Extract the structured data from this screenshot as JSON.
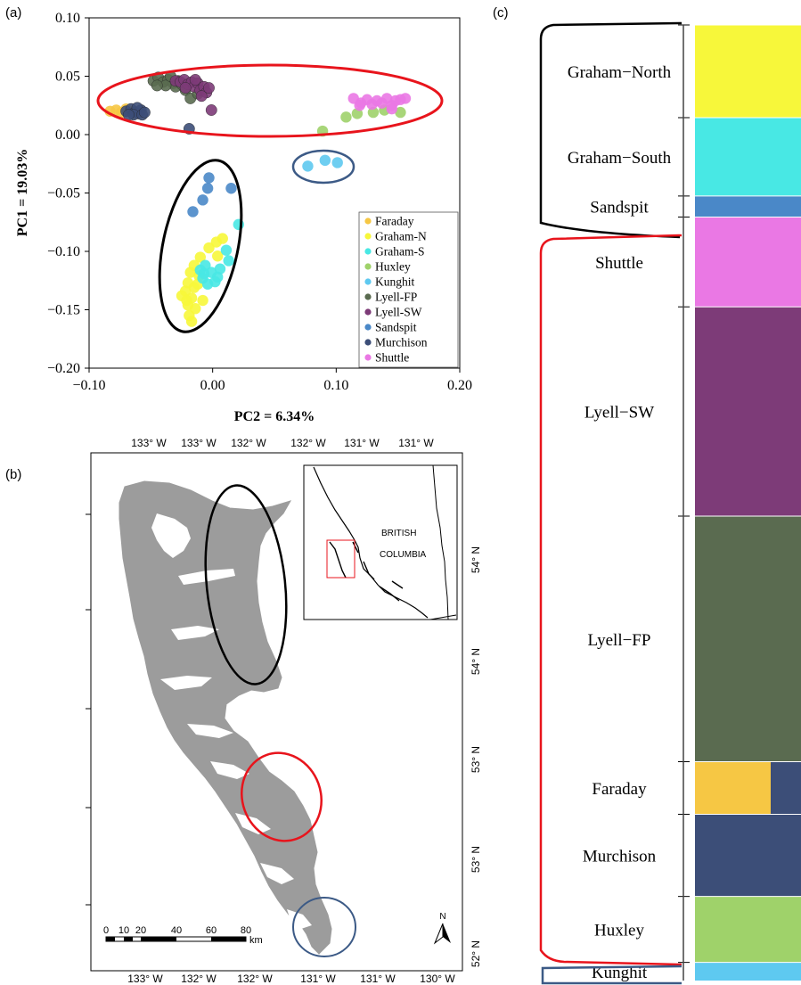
{
  "panels": {
    "a": "(a)",
    "b": "(b)",
    "c": "(c)"
  },
  "colors": {
    "Faraday": "#f6c744",
    "Graham-N": "#f7f73a",
    "Graham-S": "#48e8e4",
    "Huxley": "#9fd26a",
    "Kunghit": "#5ec9f0",
    "Lyell-FP": "#5a6b50",
    "Lyell-SW": "#7d3b78",
    "Sandspit": "#4a88c8",
    "Murchison": "#3c4e78",
    "Shuttle": "#ea78e4",
    "red_ellipse": "#e8141c",
    "blue_ellipse": "#3c5a86",
    "black_ellipse": "#000000",
    "landmass": "#9c9c9c"
  },
  "chart_data": [
    {
      "type": "scatter",
      "panel": "a",
      "xlabel": "PC2 = 6.34%",
      "ylabel": "PC1 = 19.03%",
      "xlim": [
        -0.1,
        0.2
      ],
      "ylim": [
        -0.2,
        0.1
      ],
      "xticks": [
        "−0.10",
        "0.00",
        "0.10",
        "0.20"
      ],
      "yticks": [
        "0.10",
        "0.05",
        "0.00",
        "−0.05",
        "−0.10",
        "−0.15",
        "−0.20"
      ],
      "legend_position": "bottom-right",
      "legend": [
        "Faraday",
        "Graham-N",
        "Graham-S",
        "Huxley",
        "Kunghit",
        "Lyell-FP",
        "Lyell-SW",
        "Sandspit",
        "Murchison",
        "Shuttle"
      ],
      "series": [
        {
          "name": "Faraday",
          "points": [
            [
              -0.083,
              0.02
            ],
            [
              -0.078,
              0.021
            ],
            [
              -0.074,
              0.019
            ],
            [
              -0.07,
              0.022
            ],
            [
              -0.066,
              0.02
            ],
            [
              -0.062,
              0.018
            ]
          ]
        },
        {
          "name": "Murchison",
          "points": [
            [
              -0.07,
              0.02
            ],
            [
              -0.066,
              0.022
            ],
            [
              -0.063,
              0.019
            ],
            [
              -0.06,
              0.018
            ],
            [
              -0.058,
              0.021
            ],
            [
              -0.061,
              0.023
            ],
            [
              -0.064,
              0.017
            ],
            [
              -0.057,
              0.017
            ],
            [
              -0.055,
              0.019
            ],
            [
              -0.068,
              0.017
            ],
            [
              -0.019,
              0.005
            ]
          ]
        },
        {
          "name": "Lyell-FP",
          "points": [
            [
              -0.048,
              0.046
            ],
            [
              -0.044,
              0.049
            ],
            [
              -0.04,
              0.045
            ],
            [
              -0.036,
              0.047
            ],
            [
              -0.032,
              0.044
            ],
            [
              -0.03,
              0.041
            ],
            [
              -0.028,
              0.046
            ],
            [
              -0.025,
              0.043
            ],
            [
              -0.038,
              0.042
            ],
            [
              -0.022,
              0.038
            ],
            [
              -0.018,
              0.031
            ],
            [
              -0.045,
              0.042
            ],
            [
              -0.034,
              0.05
            ],
            [
              -0.012,
              0.035
            ]
          ]
        },
        {
          "name": "Lyell-SW",
          "points": [
            [
              -0.03,
              0.046
            ],
            [
              -0.026,
              0.045
            ],
            [
              -0.023,
              0.047
            ],
            [
              -0.02,
              0.043
            ],
            [
              -0.017,
              0.045
            ],
            [
              -0.015,
              0.041
            ],
            [
              -0.012,
              0.044
            ],
            [
              -0.01,
              0.038
            ],
            [
              -0.007,
              0.041
            ],
            [
              -0.005,
              0.036
            ],
            [
              -0.003,
              0.04
            ],
            [
              -0.009,
              0.033
            ],
            [
              -0.022,
              0.04
            ],
            [
              -0.001,
              0.021
            ],
            [
              -0.014,
              0.047
            ]
          ]
        },
        {
          "name": "Huxley",
          "points": [
            [
              0.089,
              0.003
            ],
            [
              0.108,
              0.015
            ],
            [
              0.117,
              0.018
            ],
            [
              0.13,
              0.019
            ],
            [
              0.139,
              0.021
            ],
            [
              0.152,
              0.019
            ]
          ]
        },
        {
          "name": "Shuttle",
          "points": [
            [
              0.114,
              0.031
            ],
            [
              0.12,
              0.027
            ],
            [
              0.125,
              0.03
            ],
            [
              0.129,
              0.026
            ],
            [
              0.133,
              0.029
            ],
            [
              0.137,
              0.027
            ],
            [
              0.141,
              0.031
            ],
            [
              0.145,
              0.025
            ],
            [
              0.148,
              0.029
            ],
            [
              0.152,
              0.03
            ],
            [
              0.156,
              0.031
            ],
            [
              0.119,
              0.025
            ],
            [
              0.145,
              0.022
            ]
          ]
        },
        {
          "name": "Kunghit",
          "points": [
            [
              0.077,
              -0.027
            ],
            [
              0.091,
              -0.022
            ],
            [
              0.101,
              -0.024
            ]
          ]
        },
        {
          "name": "Sandspit",
          "points": [
            [
              -0.003,
              -0.037
            ],
            [
              -0.004,
              -0.046
            ],
            [
              0.015,
              -0.046
            ],
            [
              -0.008,
              -0.056
            ],
            [
              -0.016,
              -0.066
            ]
          ]
        },
        {
          "name": "Graham-N",
          "points": [
            [
              0.008,
              -0.089
            ],
            [
              0.003,
              -0.092
            ],
            [
              -0.003,
              -0.097
            ],
            [
              0.004,
              -0.104
            ],
            [
              -0.01,
              -0.105
            ],
            [
              -0.015,
              -0.112
            ],
            [
              -0.018,
              -0.118
            ],
            [
              -0.011,
              -0.121
            ],
            [
              -0.02,
              -0.127
            ],
            [
              -0.015,
              -0.131
            ],
            [
              -0.022,
              -0.134
            ],
            [
              -0.017,
              -0.14
            ],
            [
              -0.02,
              -0.146
            ],
            [
              -0.014,
              -0.149
            ],
            [
              -0.019,
              -0.155
            ],
            [
              -0.017,
              -0.16
            ],
            [
              -0.025,
              -0.138
            ],
            [
              -0.008,
              -0.142
            ],
            [
              -0.012,
              -0.128
            ],
            [
              -0.021,
              -0.142
            ]
          ]
        },
        {
          "name": "Graham-S",
          "points": [
            [
              0.021,
              -0.077
            ],
            [
              0.011,
              -0.099
            ],
            [
              0.013,
              -0.108
            ],
            [
              -0.006,
              -0.112
            ],
            [
              -0.001,
              -0.118
            ],
            [
              0.004,
              -0.122
            ],
            [
              -0.008,
              -0.123
            ],
            [
              0.006,
              -0.115
            ],
            [
              -0.004,
              -0.128
            ],
            [
              -0.01,
              -0.116
            ],
            [
              0.002,
              -0.126
            ],
            [
              -0.007,
              -0.119
            ]
          ]
        }
      ]
    },
    {
      "type": "map",
      "panel": "b",
      "top_ticks": [
        "133° W",
        "133° W",
        "132° W",
        "132° W",
        "131° W",
        "131° W"
      ],
      "bottom_ticks": [
        "133° W",
        "132° W",
        "132° W",
        "131° W",
        "131° W",
        "130° W"
      ],
      "right_ticks": [
        "54° N",
        "54° N",
        "53° N",
        "53° N",
        "52° N"
      ],
      "inset_labels": [
        "BRITISH",
        "COLUMBIA"
      ],
      "scalebar_ticks": [
        "0",
        "10",
        "20",
        "40",
        "60",
        "80"
      ],
      "scalebar_unit": "km",
      "north_label": "N"
    },
    {
      "type": "structure-barplot",
      "panel": "c",
      "groups": [
        {
          "label": "Graham−North",
          "main": "Graham-N",
          "rows": [
            [
              0.0,
              0.051
            ],
            [
              0.051,
              0.097
            ]
          ]
        },
        {
          "label": "Graham−South",
          "main": "Graham-S",
          "rows": [
            [
              0.097,
              0.151
            ],
            [
              0.151,
              0.179
            ]
          ]
        },
        {
          "label": "Sandspit",
          "main": "Sandspit",
          "rows": [
            [
              0.179,
              0.201
            ]
          ]
        },
        {
          "label": "Shuttle",
          "main": "Shuttle",
          "rows": [
            [
              0.201,
              0.295
            ]
          ]
        },
        {
          "label": "Lyell−SW",
          "main": "Lyell-SW",
          "rows": [
            [
              0.295,
              0.514
            ]
          ]
        },
        {
          "label": "Lyell−FP",
          "main": "Lyell-FP",
          "rows": [
            [
              0.514,
              0.771
            ]
          ]
        },
        {
          "label": "Faraday",
          "main": "Faraday",
          "rows": [
            [
              0.771,
              0.826
            ]
          ]
        },
        {
          "label": "Murchison",
          "main": "Murchison",
          "rows": [
            [
              0.826,
              0.912
            ]
          ]
        },
        {
          "label": "Huxley",
          "main": "Huxley",
          "rows": [
            [
              0.912,
              0.981
            ]
          ]
        },
        {
          "label": "Kunghit",
          "main": "Kunghit",
          "rows": [
            [
              0.981,
              1.0
            ]
          ]
        }
      ]
    }
  ]
}
